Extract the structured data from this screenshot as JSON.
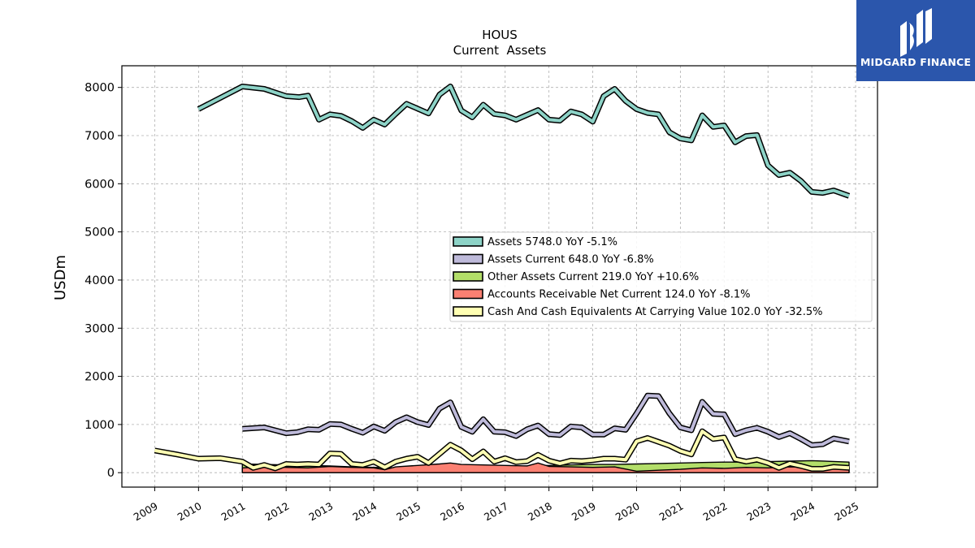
{
  "brand": {
    "name": "MIDGARD FINANCE",
    "bg": "#2b56ac"
  },
  "chart_data": {
    "type": "line",
    "title": "HOUS",
    "subtitle": "Current  Assets",
    "ylabel": "USDm",
    "xlabel": "",
    "ylim": [
      -300,
      8450
    ],
    "xlim": [
      2008.25,
      2025.5
    ],
    "yticks": [
      0,
      1000,
      2000,
      3000,
      4000,
      5000,
      6000,
      7000,
      8000
    ],
    "xticks": [
      "2009",
      "2010",
      "2011",
      "2012",
      "2013",
      "2014",
      "2015",
      "2016",
      "2017",
      "2018",
      "2019",
      "2020",
      "2021",
      "2022",
      "2023",
      "2024",
      "2025"
    ],
    "grid": true,
    "legend_position": "center-right",
    "series": [
      {
        "name": "Assets",
        "legend": "Assets  5748.0 YoY -5.1%",
        "color": "#8dd3c7",
        "kind": "line",
        "points": [
          [
            2010.0,
            7550
          ],
          [
            2011.0,
            8020
          ],
          [
            2011.5,
            7970
          ],
          [
            2012.0,
            7820
          ],
          [
            2012.3,
            7800
          ],
          [
            2012.5,
            7830
          ],
          [
            2012.75,
            7330
          ],
          [
            2013.0,
            7440
          ],
          [
            2013.25,
            7410
          ],
          [
            2013.5,
            7300
          ],
          [
            2013.75,
            7160
          ],
          [
            2014.0,
            7330
          ],
          [
            2014.25,
            7230
          ],
          [
            2014.5,
            7450
          ],
          [
            2014.75,
            7660
          ],
          [
            2015.0,
            7560
          ],
          [
            2015.25,
            7460
          ],
          [
            2015.5,
            7850
          ],
          [
            2015.75,
            8020
          ],
          [
            2016.0,
            7520
          ],
          [
            2016.25,
            7380
          ],
          [
            2016.5,
            7640
          ],
          [
            2016.75,
            7450
          ],
          [
            2017.0,
            7420
          ],
          [
            2017.25,
            7330
          ],
          [
            2017.5,
            7430
          ],
          [
            2017.75,
            7530
          ],
          [
            2018.0,
            7330
          ],
          [
            2018.25,
            7310
          ],
          [
            2018.5,
            7500
          ],
          [
            2018.75,
            7440
          ],
          [
            2019.0,
            7290
          ],
          [
            2019.25,
            7820
          ],
          [
            2019.5,
            7970
          ],
          [
            2019.75,
            7720
          ],
          [
            2020.0,
            7550
          ],
          [
            2020.25,
            7470
          ],
          [
            2020.5,
            7440
          ],
          [
            2020.75,
            7070
          ],
          [
            2021.0,
            6940
          ],
          [
            2021.25,
            6900
          ],
          [
            2021.5,
            7420
          ],
          [
            2021.75,
            7180
          ],
          [
            2022.0,
            7210
          ],
          [
            2022.25,
            6860
          ],
          [
            2022.5,
            6990
          ],
          [
            2022.75,
            7010
          ],
          [
            2023.0,
            6380
          ],
          [
            2023.25,
            6180
          ],
          [
            2023.5,
            6230
          ],
          [
            2023.75,
            6060
          ],
          [
            2024.0,
            5830
          ],
          [
            2024.25,
            5810
          ],
          [
            2024.5,
            5860
          ],
          [
            2024.85,
            5748
          ]
        ]
      },
      {
        "name": "Assets Current",
        "legend": "Assets Current  648.0 YoY -6.8%",
        "color": "#bebada",
        "kind": "line",
        "points": [
          [
            2011.0,
            910
          ],
          [
            2011.5,
            940
          ],
          [
            2012.0,
            820
          ],
          [
            2012.25,
            840
          ],
          [
            2012.5,
            900
          ],
          [
            2012.75,
            890
          ],
          [
            2013.0,
            1010
          ],
          [
            2013.25,
            1000
          ],
          [
            2013.5,
            910
          ],
          [
            2013.75,
            830
          ],
          [
            2014.0,
            960
          ],
          [
            2014.25,
            870
          ],
          [
            2014.5,
            1050
          ],
          [
            2014.75,
            1150
          ],
          [
            2015.0,
            1050
          ],
          [
            2015.25,
            990
          ],
          [
            2015.5,
            1330
          ],
          [
            2015.75,
            1460
          ],
          [
            2016.0,
            950
          ],
          [
            2016.25,
            850
          ],
          [
            2016.5,
            1110
          ],
          [
            2016.75,
            850
          ],
          [
            2017.0,
            840
          ],
          [
            2017.25,
            760
          ],
          [
            2017.5,
            900
          ],
          [
            2017.75,
            980
          ],
          [
            2018.0,
            800
          ],
          [
            2018.25,
            780
          ],
          [
            2018.5,
            960
          ],
          [
            2018.75,
            940
          ],
          [
            2019.0,
            790
          ],
          [
            2019.25,
            790
          ],
          [
            2019.5,
            920
          ],
          [
            2019.75,
            890
          ],
          [
            2020.0,
            1230
          ],
          [
            2020.25,
            1600
          ],
          [
            2020.5,
            1590
          ],
          [
            2020.75,
            1230
          ],
          [
            2021.0,
            940
          ],
          [
            2021.25,
            880
          ],
          [
            2021.5,
            1470
          ],
          [
            2021.75,
            1220
          ],
          [
            2022.0,
            1210
          ],
          [
            2022.25,
            800
          ],
          [
            2022.5,
            880
          ],
          [
            2022.75,
            930
          ],
          [
            2023.0,
            850
          ],
          [
            2023.25,
            740
          ],
          [
            2023.5,
            820
          ],
          [
            2023.75,
            700
          ],
          [
            2024.0,
            570
          ],
          [
            2024.25,
            590
          ],
          [
            2024.5,
            710
          ],
          [
            2024.85,
            648
          ]
        ]
      },
      {
        "name": "Other Assets Current",
        "legend": "Other Assets Current  219.0 YoY +10.6%",
        "color": "#b3de69",
        "kind": "area",
        "points": [
          [
            2011.0,
            180
          ],
          [
            2011.5,
            170
          ],
          [
            2012.0,
            160
          ],
          [
            2012.5,
            150
          ],
          [
            2013.0,
            140
          ],
          [
            2013.5,
            120
          ],
          [
            2014.0,
            110
          ],
          [
            2014.5,
            100
          ],
          [
            2015.0,
            100
          ],
          [
            2015.5,
            110
          ],
          [
            2016.0,
            110
          ],
          [
            2016.5,
            120
          ],
          [
            2017.0,
            130
          ],
          [
            2017.5,
            140
          ],
          [
            2018.0,
            150
          ],
          [
            2018.5,
            160
          ],
          [
            2019.0,
            170
          ],
          [
            2019.5,
            170
          ],
          [
            2020.0,
            180
          ],
          [
            2020.5,
            190
          ],
          [
            2021.0,
            200
          ],
          [
            2021.5,
            210
          ],
          [
            2022.0,
            220
          ],
          [
            2022.5,
            220
          ],
          [
            2023.0,
            230
          ],
          [
            2023.5,
            240
          ],
          [
            2024.0,
            250
          ],
          [
            2024.85,
            219
          ]
        ]
      },
      {
        "name": "Accounts Receivable Net Current",
        "legend": "Accounts Receivable Net Current  124.0 YoY -8.1%",
        "color": "#fb8072",
        "kind": "area",
        "points": [
          [
            2011.0,
            100
          ],
          [
            2011.5,
            120
          ],
          [
            2012.0,
            110
          ],
          [
            2012.5,
            100
          ],
          [
            2013.0,
            130
          ],
          [
            2013.5,
            110
          ],
          [
            2014.0,
            100
          ],
          [
            2014.25,
            60
          ],
          [
            2014.5,
            120
          ],
          [
            2015.0,
            150
          ],
          [
            2015.5,
            180
          ],
          [
            2015.75,
            200
          ],
          [
            2016.0,
            170
          ],
          [
            2016.5,
            160
          ],
          [
            2017.0,
            150
          ],
          [
            2017.5,
            140
          ],
          [
            2017.75,
            200
          ],
          [
            2018.0,
            130
          ],
          [
            2018.5,
            120
          ],
          [
            2019.0,
            110
          ],
          [
            2019.5,
            120
          ],
          [
            2020.0,
            30
          ],
          [
            2020.5,
            50
          ],
          [
            2021.0,
            70
          ],
          [
            2021.5,
            100
          ],
          [
            2022.0,
            90
          ],
          [
            2022.5,
            110
          ],
          [
            2023.0,
            100
          ],
          [
            2023.5,
            120
          ],
          [
            2024.0,
            110
          ],
          [
            2024.85,
            124
          ]
        ]
      },
      {
        "name": "Cash And Cash Equivalents At Carrying Value",
        "legend": "Cash And Cash Equivalents At Carrying Value  102.0 YoY -32.5%",
        "color": "#ffffb3",
        "kind": "line",
        "points": [
          [
            2009.0,
            460
          ],
          [
            2009.5,
            380
          ],
          [
            2010.0,
            290
          ],
          [
            2010.5,
            300
          ],
          [
            2011.0,
            230
          ],
          [
            2011.25,
            100
          ],
          [
            2011.5,
            160
          ],
          [
            2011.75,
            90
          ],
          [
            2012.0,
            180
          ],
          [
            2012.25,
            170
          ],
          [
            2012.5,
            180
          ],
          [
            2012.75,
            170
          ],
          [
            2013.0,
            400
          ],
          [
            2013.25,
            390
          ],
          [
            2013.5,
            180
          ],
          [
            2013.75,
            160
          ],
          [
            2014.0,
            230
          ],
          [
            2014.25,
            110
          ],
          [
            2014.5,
            230
          ],
          [
            2014.75,
            290
          ],
          [
            2015.0,
            330
          ],
          [
            2015.25,
            200
          ],
          [
            2015.5,
            390
          ],
          [
            2015.75,
            580
          ],
          [
            2016.0,
            460
          ],
          [
            2016.25,
            280
          ],
          [
            2016.5,
            440
          ],
          [
            2016.75,
            230
          ],
          [
            2017.0,
            300
          ],
          [
            2017.25,
            220
          ],
          [
            2017.5,
            240
          ],
          [
            2017.75,
            370
          ],
          [
            2018.0,
            250
          ],
          [
            2018.25,
            190
          ],
          [
            2018.5,
            250
          ],
          [
            2018.75,
            240
          ],
          [
            2019.0,
            260
          ],
          [
            2019.25,
            290
          ],
          [
            2019.5,
            290
          ],
          [
            2019.75,
            270
          ],
          [
            2020.0,
            650
          ],
          [
            2020.25,
            720
          ],
          [
            2020.5,
            640
          ],
          [
            2020.75,
            560
          ],
          [
            2021.0,
            450
          ],
          [
            2021.25,
            380
          ],
          [
            2021.5,
            860
          ],
          [
            2021.75,
            700
          ],
          [
            2022.0,
            730
          ],
          [
            2022.25,
            280
          ],
          [
            2022.5,
            230
          ],
          [
            2022.75,
            270
          ],
          [
            2023.0,
            200
          ],
          [
            2023.25,
            100
          ],
          [
            2023.5,
            190
          ],
          [
            2023.75,
            140
          ],
          [
            2024.0,
            80
          ],
          [
            2024.25,
            80
          ],
          [
            2024.5,
            120
          ],
          [
            2024.85,
            102
          ]
        ]
      }
    ]
  }
}
